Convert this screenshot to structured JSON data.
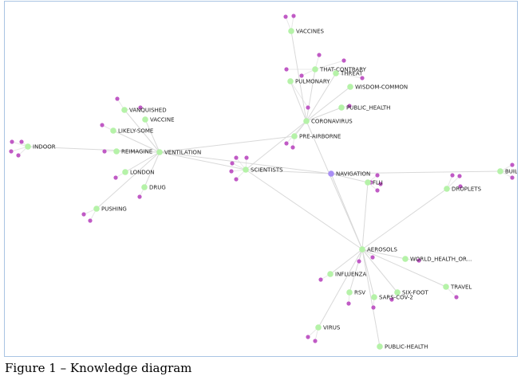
{
  "colors": {
    "concept_node": "#b5f2a8",
    "leaf_node": "#c05ac5",
    "selected_node": "#a98ef5",
    "edge": "#d9d9d9"
  },
  "caption": "Figure 1 – Knowledge diagram",
  "nodes": [
    {
      "id": "vaccines",
      "label": "VACCINES",
      "kind": "concept"
    },
    {
      "id": "that-contrary",
      "label": "THAT-CONTRARY",
      "kind": "concept"
    },
    {
      "id": "threat",
      "label": "THREAT",
      "kind": "concept"
    },
    {
      "id": "pulmonary",
      "label": "PULMONARY",
      "kind": "concept"
    },
    {
      "id": "wisdom-common",
      "label": "WISDOM-COMMON",
      "kind": "concept"
    },
    {
      "id": "public_health",
      "label": "PUBLIC_HEALTH",
      "kind": "concept"
    },
    {
      "id": "coronavirus",
      "label": "CORONAVIRUS",
      "kind": "concept"
    },
    {
      "id": "pre-airborne",
      "label": "PRE-AIRBORNE",
      "kind": "concept"
    },
    {
      "id": "vanquished",
      "label": "VANQUISHED",
      "kind": "concept"
    },
    {
      "id": "vaccine",
      "label": "VACCINE",
      "kind": "concept"
    },
    {
      "id": "likely-some",
      "label": "LIKELY-SOME",
      "kind": "concept"
    },
    {
      "id": "indoor",
      "label": "INDOOR",
      "kind": "concept"
    },
    {
      "id": "reimagine",
      "label": "REIMAGINE",
      "kind": "concept"
    },
    {
      "id": "ventilation",
      "label": "VENTILATION",
      "kind": "concept"
    },
    {
      "id": "scientists",
      "label": "SCIENTISTS",
      "kind": "concept"
    },
    {
      "id": "navigation",
      "label": "NAVIGATION",
      "kind": "selected"
    },
    {
      "id": "london",
      "label": "LONDON",
      "kind": "concept"
    },
    {
      "id": "drug",
      "label": "DRUG",
      "kind": "concept"
    },
    {
      "id": "flu",
      "label": "FLU",
      "kind": "concept"
    },
    {
      "id": "droplets",
      "label": "DROPLETS",
      "kind": "concept"
    },
    {
      "id": "build",
      "label": "BUILD",
      "kind": "concept"
    },
    {
      "id": "pushing",
      "label": "PUSHING",
      "kind": "concept"
    },
    {
      "id": "aerosols",
      "label": "AEROSOLS",
      "kind": "concept"
    },
    {
      "id": "world_health",
      "label": "WORLD_HEALTH_OR...",
      "kind": "concept"
    },
    {
      "id": "influenza",
      "label": "INFLUENZA",
      "kind": "concept"
    },
    {
      "id": "rsv",
      "label": "RSV",
      "kind": "concept"
    },
    {
      "id": "six-foot",
      "label": "SIX-FOOT",
      "kind": "concept"
    },
    {
      "id": "travel",
      "label": "TRAVEL",
      "kind": "concept"
    },
    {
      "id": "sars-cov-2",
      "label": "SARS-COV-2",
      "kind": "concept"
    },
    {
      "id": "virus",
      "label": "VIRUS",
      "kind": "concept"
    },
    {
      "id": "public-health",
      "label": "PUBLIC-HEALTH",
      "kind": "concept"
    }
  ],
  "edges": [
    [
      "vaccines",
      "coronavirus"
    ],
    [
      "that-contrary",
      "coronavirus"
    ],
    [
      "threat",
      "coronavirus"
    ],
    [
      "pulmonary",
      "coronavirus"
    ],
    [
      "wisdom-common",
      "coronavirus"
    ],
    [
      "public_health",
      "coronavirus"
    ],
    [
      "coronavirus",
      "pre-airborne"
    ],
    [
      "coronavirus",
      "scientists"
    ],
    [
      "coronavirus",
      "aerosols"
    ],
    [
      "pre-airborne",
      "ventilation"
    ],
    [
      "vanquished",
      "ventilation"
    ],
    [
      "vaccine",
      "ventilation"
    ],
    [
      "likely-some",
      "ventilation"
    ],
    [
      "indoor",
      "ventilation"
    ],
    [
      "reimagine",
      "ventilation"
    ],
    [
      "london",
      "ventilation"
    ],
    [
      "drug",
      "ventilation"
    ],
    [
      "pushing",
      "ventilation"
    ],
    [
      "ventilation",
      "scientists"
    ],
    [
      "ventilation",
      "navigation"
    ],
    [
      "scientists",
      "navigation"
    ],
    [
      "scientists",
      "aerosols"
    ],
    [
      "navigation",
      "flu"
    ],
    [
      "navigation",
      "aerosols"
    ],
    [
      "navigation",
      "build"
    ],
    [
      "flu",
      "aerosols"
    ],
    [
      "droplets",
      "aerosols"
    ],
    [
      "aerosols",
      "world_health"
    ],
    [
      "aerosols",
      "influenza"
    ],
    [
      "aerosols",
      "rsv"
    ],
    [
      "aerosols",
      "six-foot"
    ],
    [
      "aerosols",
      "travel"
    ],
    [
      "aerosols",
      "sars-cov-2"
    ],
    [
      "aerosols",
      "virus"
    ],
    [
      "aerosols",
      "public-health"
    ]
  ]
}
